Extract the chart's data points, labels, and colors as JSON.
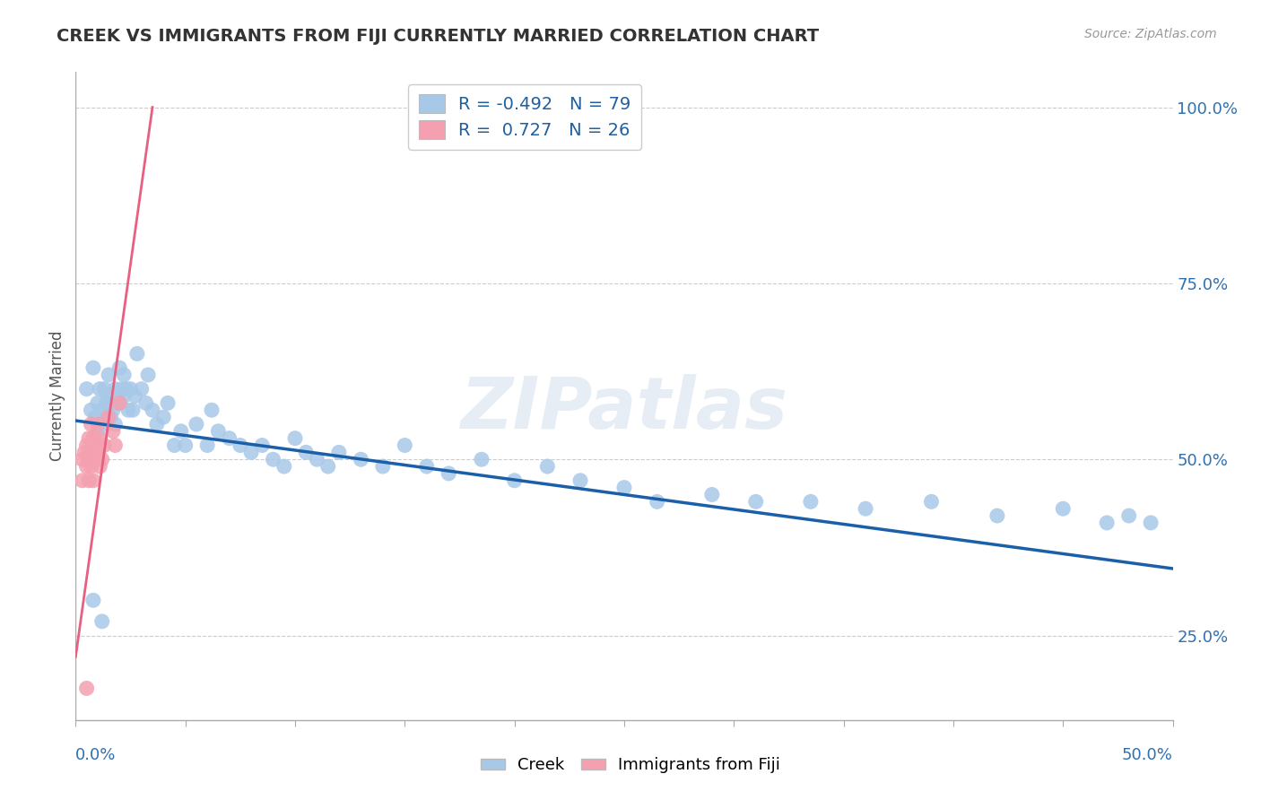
{
  "title": "CREEK VS IMMIGRANTS FROM FIJI CURRENTLY MARRIED CORRELATION CHART",
  "source": "Source: ZipAtlas.com",
  "ylabel": "Currently Married",
  "y_ticks": [
    0.25,
    0.5,
    0.75,
    1.0
  ],
  "y_tick_labels": [
    "25.0%",
    "50.0%",
    "75.0%",
    "100.0%"
  ],
  "x_range": [
    0.0,
    0.5
  ],
  "y_range": [
    0.13,
    1.05
  ],
  "creek_R": -0.492,
  "creek_N": 79,
  "fiji_R": 0.727,
  "fiji_N": 26,
  "creek_color": "#a8c8e8",
  "fiji_color": "#f4a0b0",
  "creek_line_color": "#1a5fa8",
  "fiji_line_color": "#e86080",
  "background_color": "#ffffff",
  "watermark": "ZIPatlas",
  "creek_line_x0": 0.0,
  "creek_line_y0": 0.555,
  "creek_line_x1": 0.5,
  "creek_line_y1": 0.345,
  "fiji_line_x0": 0.0,
  "fiji_line_y0": 0.22,
  "fiji_line_x1": 0.035,
  "fiji_line_y1": 1.0,
  "creek_x": [
    0.005,
    0.007,
    0.008,
    0.009,
    0.01,
    0.01,
    0.011,
    0.012,
    0.012,
    0.013,
    0.013,
    0.014,
    0.015,
    0.015,
    0.016,
    0.016,
    0.017,
    0.018,
    0.018,
    0.019,
    0.02,
    0.02,
    0.021,
    0.022,
    0.022,
    0.023,
    0.024,
    0.025,
    0.026,
    0.027,
    0.028,
    0.03,
    0.032,
    0.033,
    0.035,
    0.037,
    0.04,
    0.042,
    0.045,
    0.048,
    0.05,
    0.055,
    0.06,
    0.062,
    0.065,
    0.07,
    0.075,
    0.08,
    0.085,
    0.09,
    0.095,
    0.1,
    0.105,
    0.11,
    0.115,
    0.12,
    0.13,
    0.14,
    0.15,
    0.16,
    0.17,
    0.185,
    0.2,
    0.215,
    0.23,
    0.25,
    0.265,
    0.29,
    0.31,
    0.335,
    0.36,
    0.39,
    0.42,
    0.45,
    0.47,
    0.48,
    0.49,
    0.008,
    0.012
  ],
  "creek_y": [
    0.6,
    0.57,
    0.63,
    0.56,
    0.58,
    0.54,
    0.6,
    0.57,
    0.55,
    0.6,
    0.56,
    0.58,
    0.62,
    0.59,
    0.58,
    0.56,
    0.57,
    0.6,
    0.55,
    0.58,
    0.58,
    0.63,
    0.6,
    0.62,
    0.59,
    0.6,
    0.57,
    0.6,
    0.57,
    0.59,
    0.65,
    0.6,
    0.58,
    0.62,
    0.57,
    0.55,
    0.56,
    0.58,
    0.52,
    0.54,
    0.52,
    0.55,
    0.52,
    0.57,
    0.54,
    0.53,
    0.52,
    0.51,
    0.52,
    0.5,
    0.49,
    0.53,
    0.51,
    0.5,
    0.49,
    0.51,
    0.5,
    0.49,
    0.52,
    0.49,
    0.48,
    0.5,
    0.47,
    0.49,
    0.47,
    0.46,
    0.44,
    0.45,
    0.44,
    0.44,
    0.43,
    0.44,
    0.42,
    0.43,
    0.41,
    0.42,
    0.41,
    0.3,
    0.27
  ],
  "fiji_x": [
    0.003,
    0.003,
    0.004,
    0.005,
    0.005,
    0.006,
    0.006,
    0.006,
    0.007,
    0.007,
    0.007,
    0.008,
    0.008,
    0.008,
    0.009,
    0.01,
    0.01,
    0.011,
    0.011,
    0.012,
    0.013,
    0.015,
    0.017,
    0.018,
    0.02,
    0.005
  ],
  "fiji_y": [
    0.5,
    0.47,
    0.51,
    0.52,
    0.49,
    0.53,
    0.5,
    0.47,
    0.55,
    0.51,
    0.49,
    0.53,
    0.5,
    0.47,
    0.52,
    0.55,
    0.51,
    0.53,
    0.49,
    0.5,
    0.52,
    0.56,
    0.54,
    0.52,
    0.58,
    0.175
  ]
}
